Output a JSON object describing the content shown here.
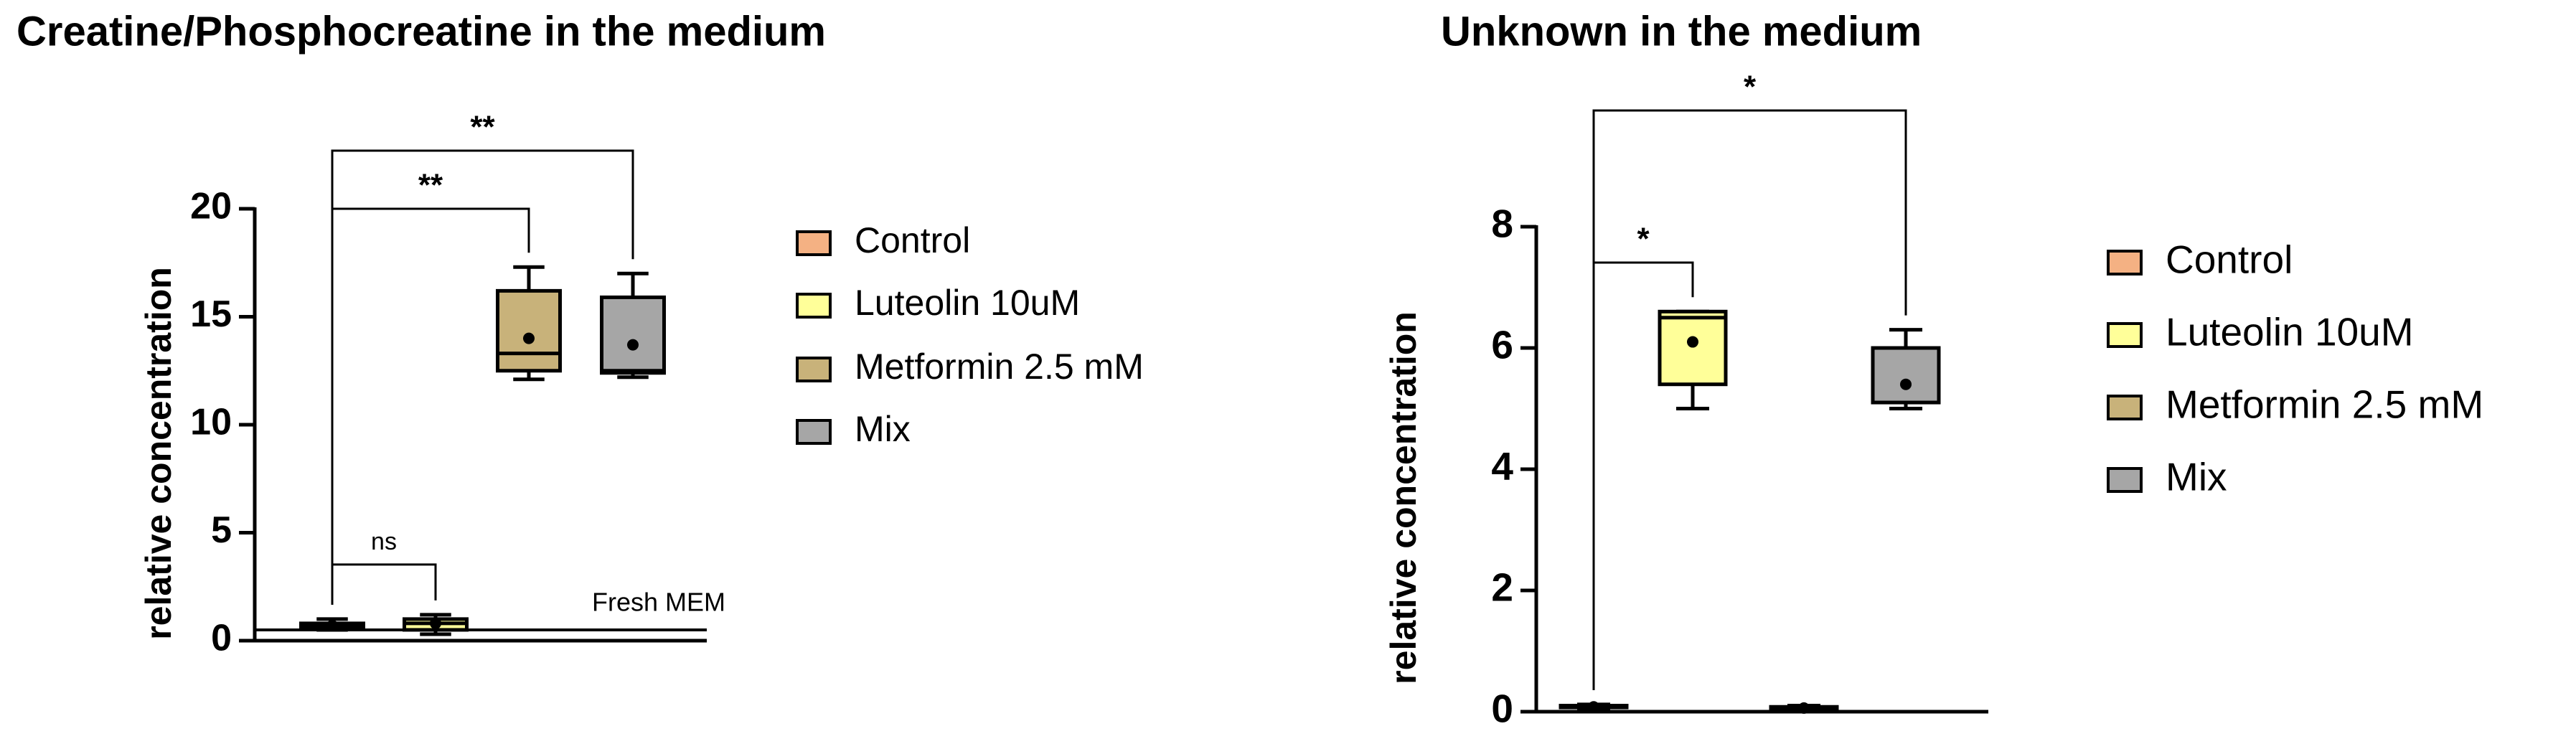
{
  "chart_data": [
    {
      "type": "box",
      "title": "Creatine/Phosphocreatine in the medium",
      "y_label": "relative concentration",
      "ylim": [
        0,
        20
      ],
      "yticks": [
        0,
        5,
        10,
        15,
        20
      ],
      "series": [
        {
          "name": "Control",
          "color": "#f4b183",
          "min": 0.5,
          "q1": 0.6,
          "median": 0.7,
          "q3": 0.8,
          "max": 1.0,
          "mean": 0.7
        },
        {
          "name": "Luteolin 10uM",
          "color": "#ffff99",
          "min": 0.3,
          "q1": 0.5,
          "median": 0.8,
          "q3": 1.0,
          "max": 1.2,
          "mean": 0.8
        },
        {
          "name": "Metformin 2.5 mM",
          "color": "#c8b27a",
          "min": 12.1,
          "q1": 12.5,
          "median": 13.3,
          "q3": 16.2,
          "max": 17.3,
          "mean": 14.0
        },
        {
          "name": "Mix",
          "color": "#a6a6a6",
          "min": 12.2,
          "q1": 12.4,
          "median": 12.5,
          "q3": 15.9,
          "max": 17.0,
          "mean": 13.7
        }
      ],
      "reference_line": {
        "label": "Fresh MEM",
        "value": 0.5
      },
      "comparisons": [
        {
          "label": "ns",
          "pair": [
            0,
            1
          ]
        },
        {
          "label": "**",
          "pair": [
            0,
            2
          ]
        },
        {
          "label": "**",
          "pair": [
            0,
            3
          ]
        }
      ]
    },
    {
      "type": "box",
      "title": "Unknown in the medium",
      "y_label": "relative concentration",
      "ylim": [
        0,
        8
      ],
      "yticks": [
        0,
        2,
        4,
        6,
        8
      ],
      "series": [
        {
          "name": "Control",
          "color": "#f4b183",
          "min": 0.05,
          "q1": 0.07,
          "median": 0.08,
          "q3": 0.1,
          "max": 0.12,
          "mean": 0.08
        },
        {
          "name": "Luteolin 10uM",
          "color": "#ffff99",
          "min": 5.0,
          "q1": 5.4,
          "median": 6.5,
          "q3": 6.6,
          "max": 6.6,
          "mean": 6.1
        },
        {
          "name": "Metformin 2.5 mM",
          "color": "#c8b27a",
          "min": 0.04,
          "q1": 0.05,
          "median": 0.06,
          "q3": 0.08,
          "max": 0.1,
          "mean": 0.06
        },
        {
          "name": "Mix",
          "color": "#a6a6a6",
          "min": 5.0,
          "q1": 5.1,
          "median": 5.1,
          "q3": 6.0,
          "max": 6.3,
          "mean": 5.4
        }
      ],
      "comparisons": [
        {
          "label": "*",
          "pair": [
            0,
            1
          ]
        },
        {
          "label": "*",
          "pair": [
            0,
            3
          ]
        }
      ]
    }
  ]
}
